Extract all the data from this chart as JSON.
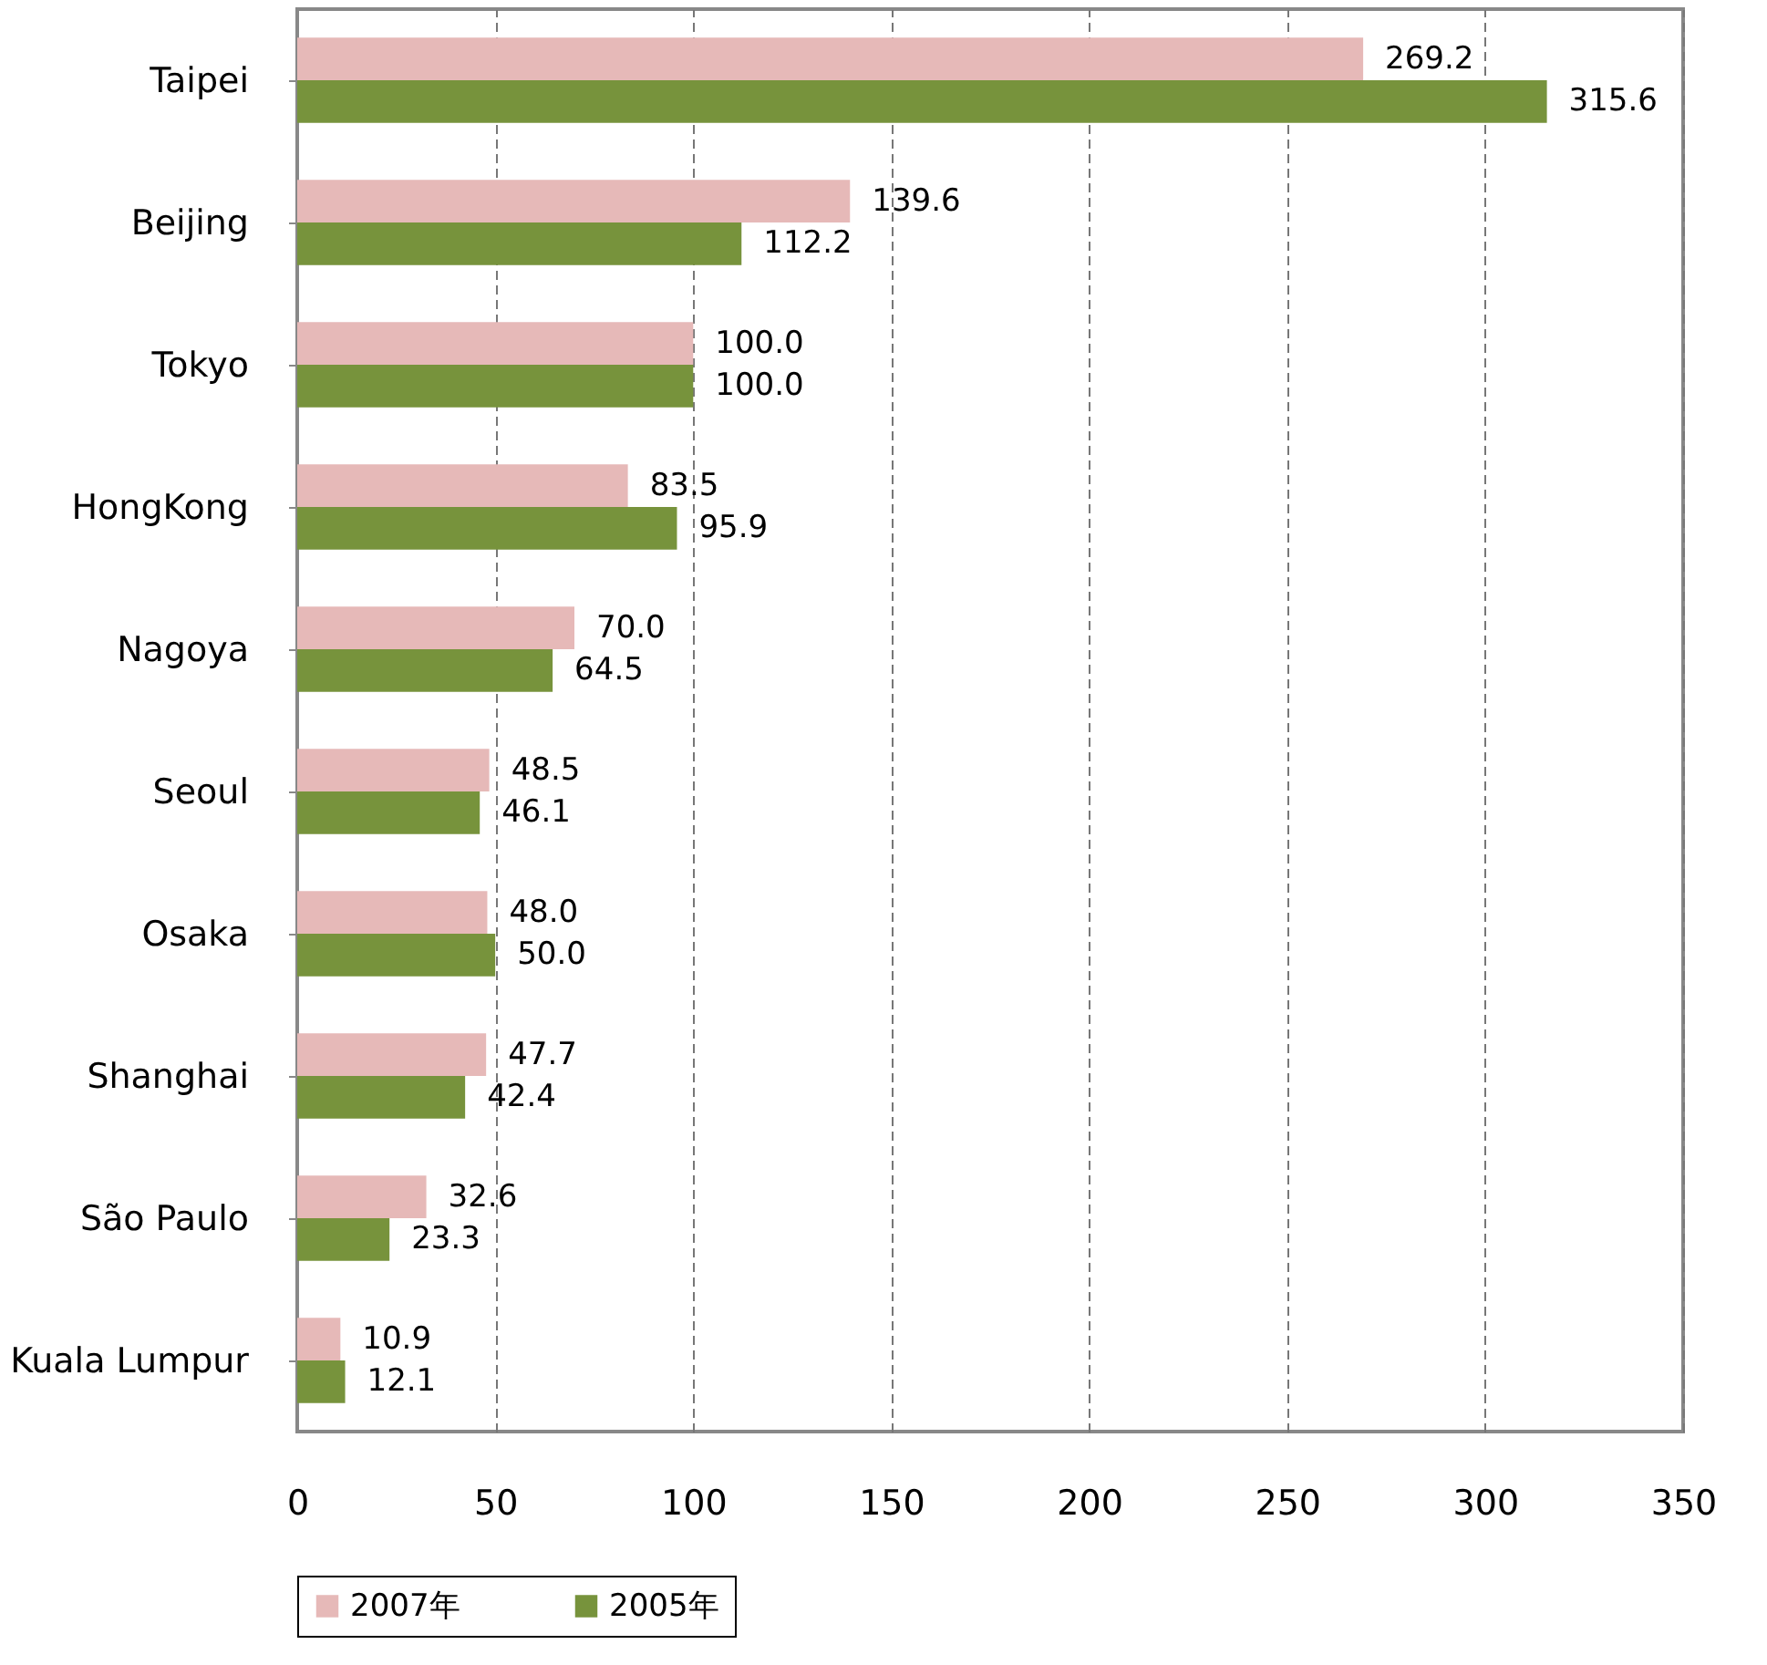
{
  "chart_data": {
    "type": "bar",
    "orientation": "horizontal",
    "categories": [
      "Taipei",
      "Beijing",
      "Tokyo",
      "HongKong",
      "Nagoya",
      "Seoul",
      "Osaka",
      "Shanghai",
      "São Paulo",
      "Kuala Lumpur"
    ],
    "series": [
      {
        "name": "2007年",
        "color": "#e6b9b8",
        "values": [
          269.2,
          139.6,
          100.0,
          83.5,
          70.0,
          48.5,
          48.0,
          47.7,
          32.6,
          10.9
        ],
        "value_labels": [
          "269.2",
          "139.6",
          "100.0",
          "83.5",
          "70.0",
          "48.5",
          "48.0",
          "47.7",
          "32.6",
          "10.9"
        ]
      },
      {
        "name": "2005年",
        "color": "#77933c",
        "values": [
          315.6,
          112.2,
          100.0,
          95.9,
          64.5,
          46.1,
          50.0,
          42.4,
          23.3,
          12.1
        ],
        "value_labels": [
          "315.6",
          "112.2",
          "100.0",
          "95.9",
          "64.5",
          "46.1",
          "50.0",
          "42.4",
          "23.3",
          "12.1"
        ]
      }
    ],
    "xlim": [
      0,
      350
    ],
    "xticks": [
      0,
      50,
      100,
      150,
      200,
      250,
      300,
      350
    ],
    "grid": "x",
    "legend": "bottom"
  }
}
